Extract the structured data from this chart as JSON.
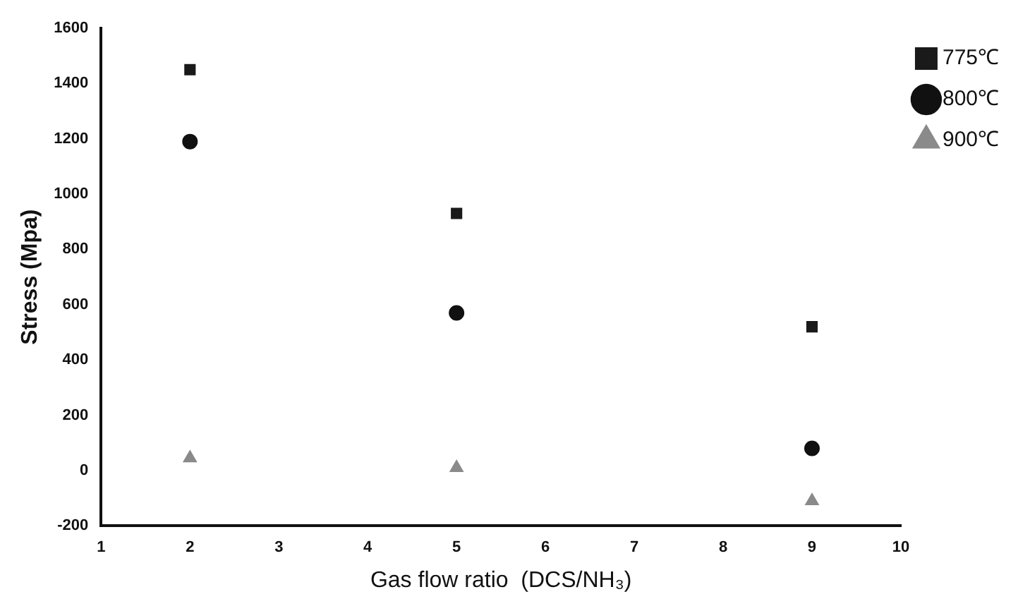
{
  "chart_data": {
    "type": "scatter",
    "xlabel": "Gas flow ratio  (DCS/NH₃)",
    "ylabel": "Stress (Mpa)",
    "x": [
      2,
      5,
      9
    ],
    "series": [
      {
        "name": "775℃",
        "color": "#1a1a1a",
        "marker": "square",
        "values": [
          1450,
          930,
          520
        ]
      },
      {
        "name": "800℃",
        "color": "#111111",
        "marker": "circle",
        "values": [
          1190,
          570,
          80
        ]
      },
      {
        "name": "900℃",
        "color": "#8a8a8a",
        "marker": "triangle",
        "values": [
          45,
          10,
          -110
        ]
      }
    ],
    "xlim": [
      1,
      10
    ],
    "xticks": [
      1,
      2,
      3,
      4,
      5,
      6,
      7,
      8,
      9,
      10
    ],
    "ylim": [
      -200,
      1600
    ],
    "yticks": [
      -200,
      0,
      200,
      400,
      600,
      800,
      1000,
      1200,
      1400,
      1600
    ],
    "grid": false,
    "legend": "top right"
  }
}
